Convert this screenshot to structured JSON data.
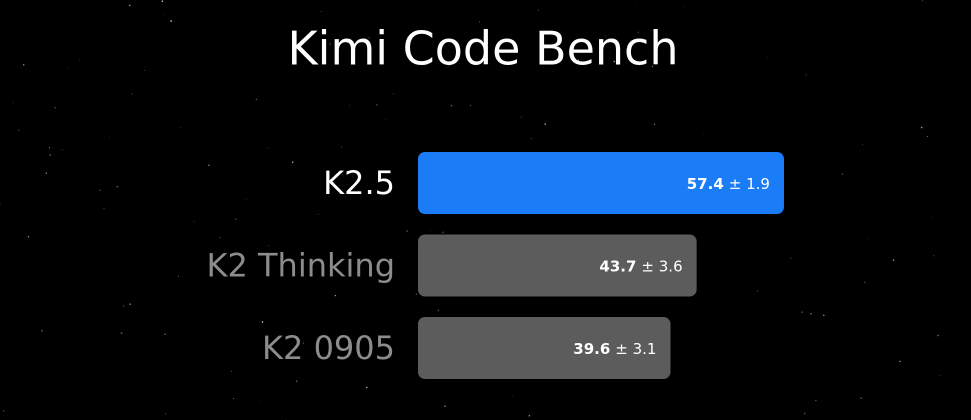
{
  "chart_data": {
    "type": "bar",
    "orientation": "horizontal",
    "title": "Kimi Code Bench",
    "categories": [
      "K2.5",
      "K2 Thinking",
      "K2 0905"
    ],
    "values": [
      57.4,
      43.7,
      39.6
    ],
    "error_labels": [
      "± 1.9",
      "± 3.6",
      "± 3.1"
    ],
    "colors": [
      "#1a7cf6",
      "#5c5c5c",
      "#5c5c5c"
    ],
    "label_colors": [
      "#ffffff",
      "#8c8c8c",
      "#8c8c8c"
    ]
  }
}
